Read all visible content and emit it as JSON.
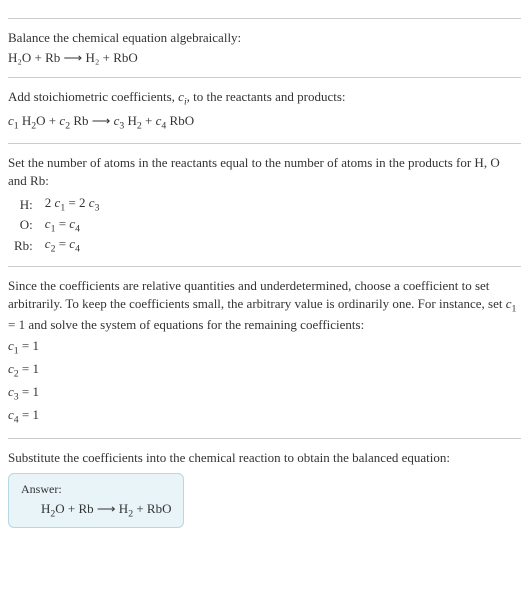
{
  "s1": {
    "title": "Balance the chemical equation algebraically:",
    "eq": "H₂O + Rb ⟶ H₂ + RbO"
  },
  "s2": {
    "title": "Add stoichiometric coefficients, cᵢ, to the reactants and products:",
    "eq": "c₁ H₂O + c₂ Rb ⟶ c₃ H₂ + c₄ RbO"
  },
  "s3": {
    "title": "Set the number of atoms in the reactants equal to the number of atoms in the products for H, O and Rb:",
    "rows": [
      {
        "label": "H:",
        "expr": "2 c₁ = 2 c₃"
      },
      {
        "label": "O:",
        "expr": "c₁ = c₄"
      },
      {
        "label": "Rb:",
        "expr": "c₂ = c₄"
      }
    ]
  },
  "s4": {
    "title": "Since the coefficients are relative quantities and underdetermined, choose a coefficient to set arbitrarily. To keep the coefficients small, the arbitrary value is ordinarily one. For instance, set c₁ = 1 and solve the system of equations for the remaining coefficients:",
    "coeffs": [
      "c₁ = 1",
      "c₂ = 1",
      "c₃ = 1",
      "c₄ = 1"
    ]
  },
  "s5": {
    "title": "Substitute the coefficients into the chemical reaction to obtain the balanced equation:",
    "answer_label": "Answer:",
    "answer_eq": "H₂O + Rb ⟶ H₂ + RbO"
  }
}
